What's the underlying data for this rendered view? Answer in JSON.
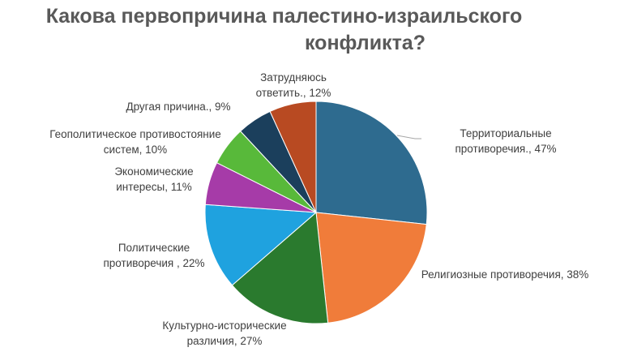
{
  "title": {
    "line1": "Какова  первопричина палестино-израильского",
    "line2": "конфликта?"
  },
  "chart_data": {
    "type": "pie",
    "title": "Какова  первопричина палестино-израильского конфликта?",
    "categories": [
      "Территориальные противоречия.",
      "Религиозные противоречия",
      "Культурно-исторические различия",
      "Политические противоречия",
      "Экономические интересы",
      "Геополитическое противостояние систем",
      "Другая причина.",
      "Затрудняюсь ответить."
    ],
    "values": [
      47,
      38,
      27,
      22,
      11,
      10,
      9,
      12
    ],
    "colors": [
      "#2E6B8F",
      "#F07C3A",
      "#2A7A2E",
      "#1FA2DF",
      "#A63BA8",
      "#58B93A",
      "#1B3F5C",
      "#B84A22"
    ],
    "labels": [
      [
        "Территориальные",
        "противоречия., 47%"
      ],
      [
        "Религиозные противоречия, 38%"
      ],
      [
        "Культурно-исторические",
        "различия, 27%"
      ],
      [
        "Политические",
        "противоречия , 22%"
      ],
      [
        "Экономические",
        "интересы, 11%"
      ],
      [
        "Геополитическое противостояние",
        "систем, 10%"
      ],
      [
        "Другая причина., 9%"
      ],
      [
        "Затрудняюсь",
        "ответить., 12%"
      ]
    ],
    "legend": "none"
  }
}
